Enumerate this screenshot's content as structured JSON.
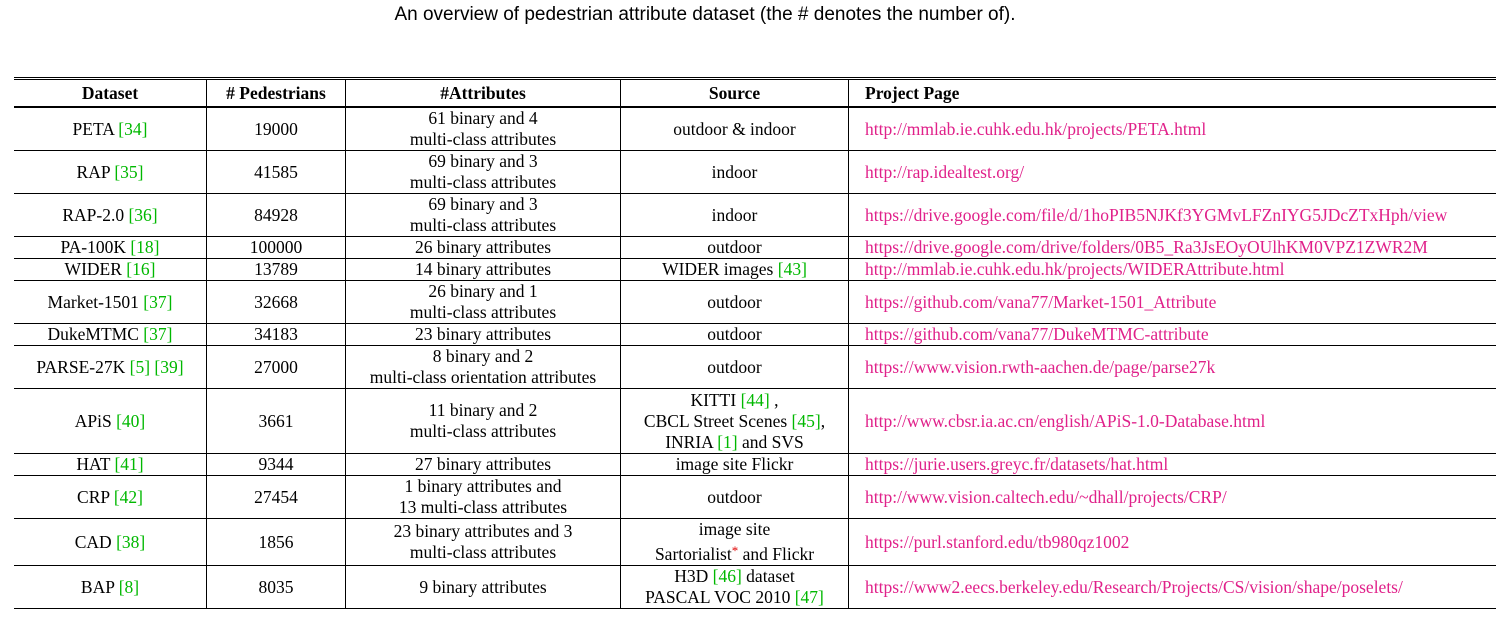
{
  "caption": "An overview of pedestrian attribute dataset (the # denotes the number of).",
  "headers": {
    "dataset": "Dataset",
    "pedestrians": "# Pedestrians",
    "attributes": "#Attributes",
    "source": "Source",
    "project": "Project Page"
  },
  "rows": [
    {
      "name": "PETA",
      "refs": [
        "[34]"
      ],
      "count": "19000",
      "attr": [
        "61 binary and 4",
        "multi-class attributes"
      ],
      "source": [
        "outdoor & indoor"
      ],
      "url": "http://mmlab.ie.cuhk.edu.hk/projects/PETA.html"
    },
    {
      "name": "RAP",
      "refs": [
        "[35]"
      ],
      "count": "41585",
      "attr": [
        "69 binary and 3",
        "multi-class attributes"
      ],
      "source": [
        "indoor"
      ],
      "url": "http://rap.idealtest.org/"
    },
    {
      "name": "RAP-2.0",
      "refs": [
        "[36]"
      ],
      "count": "84928",
      "attr": [
        "69 binary and 3",
        "multi-class attributes"
      ],
      "source": [
        "indoor"
      ],
      "url": "https://drive.google.com/file/d/1hoPIB5NJKf3YGMvLFZnIYG5JDcZTxHph/view"
    },
    {
      "name": "PA-100K",
      "refs": [
        "[18]"
      ],
      "count": "100000",
      "attr": [
        "26 binary attributes"
      ],
      "source": [
        "outdoor"
      ],
      "url": "https://drive.google.com/drive/folders/0B5_Ra3JsEOyOUlhKM0VPZ1ZWR2M"
    },
    {
      "name": "WIDER",
      "refs": [
        "[16]"
      ],
      "count": "13789",
      "attr": [
        "14 binary attributes"
      ],
      "source": [
        "WIDER images [43]"
      ],
      "url": "http://mmlab.ie.cuhk.edu.hk/projects/WIDERAttribute.html"
    },
    {
      "name": "Market-1501",
      "refs": [
        "[37]"
      ],
      "count": "32668",
      "attr": [
        "26 binary and 1",
        "multi-class attributes"
      ],
      "source": [
        "outdoor"
      ],
      "url": "https://github.com/vana77/Market-1501_Attribute"
    },
    {
      "name": "DukeMTMC",
      "refs": [
        "[37]"
      ],
      "count": "34183",
      "attr": [
        "23 binary attributes"
      ],
      "source": [
        "outdoor"
      ],
      "url": "https://github.com/vana77/DukeMTMC-attribute"
    },
    {
      "name": "PARSE-27K",
      "refs": [
        "[5]",
        "[39]"
      ],
      "count": "27000",
      "attr": [
        "8 binary and 2",
        "multi-class orientation attributes"
      ],
      "source": [
        "outdoor"
      ],
      "url": "https://www.vision.rwth-aachen.de/page/parse27k"
    },
    {
      "name": "APiS",
      "refs": [
        "[40]"
      ],
      "count": "3661",
      "attr": [
        "11 binary and 2",
        "multi-class attributes"
      ],
      "source": [
        "KITTI [44] ,",
        "CBCL Street Scenes [45],",
        "INRIA [1] and SVS"
      ],
      "url": "http://www.cbsr.ia.ac.cn/english/APiS-1.0-Database.html"
    },
    {
      "name": "HAT",
      "refs": [
        "[41]"
      ],
      "count": "9344",
      "attr": [
        "27 binary attributes"
      ],
      "source": [
        "image site Flickr"
      ],
      "url": "https://jurie.users.greyc.fr/datasets/hat.html"
    },
    {
      "name": "CRP",
      "refs": [
        "[42]"
      ],
      "count": "27454",
      "attr": [
        "1 binary attributes and",
        "13 multi-class attributes"
      ],
      "source": [
        "outdoor"
      ],
      "url": "http://www.vision.caltech.edu/~dhall/projects/CRP/"
    },
    {
      "name": "CAD",
      "refs": [
        "[38]"
      ],
      "count": "1856",
      "attr": [
        "23 binary attributes and 3",
        "multi-class attributes"
      ],
      "source": [
        "image site",
        "Sartorialist* and Flickr"
      ],
      "url": "https://purl.stanford.edu/tb980qz1002"
    },
    {
      "name": "BAP",
      "refs": [
        "[8]"
      ],
      "count": "8035",
      "attr": [
        "9 binary attributes"
      ],
      "source": [
        "H3D [46] dataset",
        "PASCAL VOC 2010 [47]"
      ],
      "url": "https://www2.eecs.berkeley.edu/Research/Projects/CS/vision/shape/poselets/"
    }
  ]
}
